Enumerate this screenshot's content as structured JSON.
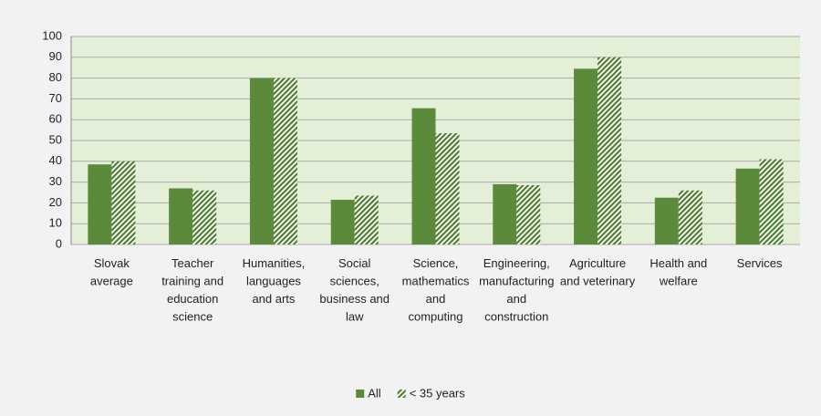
{
  "chart_data": {
    "type": "bar",
    "categories": [
      "Slovak average",
      "Teacher training and education science",
      "Humanities, languages and arts",
      "Social sciences, business and law",
      "Science, mathematics and computing",
      "Engineering, manufacturing and construction",
      "Agriculture and veterinary",
      "Health and welfare",
      "Services"
    ],
    "series": [
      {
        "name": "All",
        "color": "#5a8a3a",
        "pattern": "solid",
        "values": [
          38.5,
          27,
          80,
          21.5,
          65.5,
          29,
          84.5,
          22.5,
          36.5
        ]
      },
      {
        "name": "< 35 years",
        "color": "#4f7d31",
        "pattern": "hatch",
        "values": [
          40,
          26,
          80,
          23.5,
          53.5,
          28.5,
          90,
          26,
          41
        ]
      }
    ],
    "ylim": [
      0,
      100
    ],
    "yticks": [
      0,
      10,
      20,
      30,
      40,
      50,
      60,
      70,
      80,
      90,
      100
    ],
    "grid": true,
    "legend": "bottom"
  }
}
